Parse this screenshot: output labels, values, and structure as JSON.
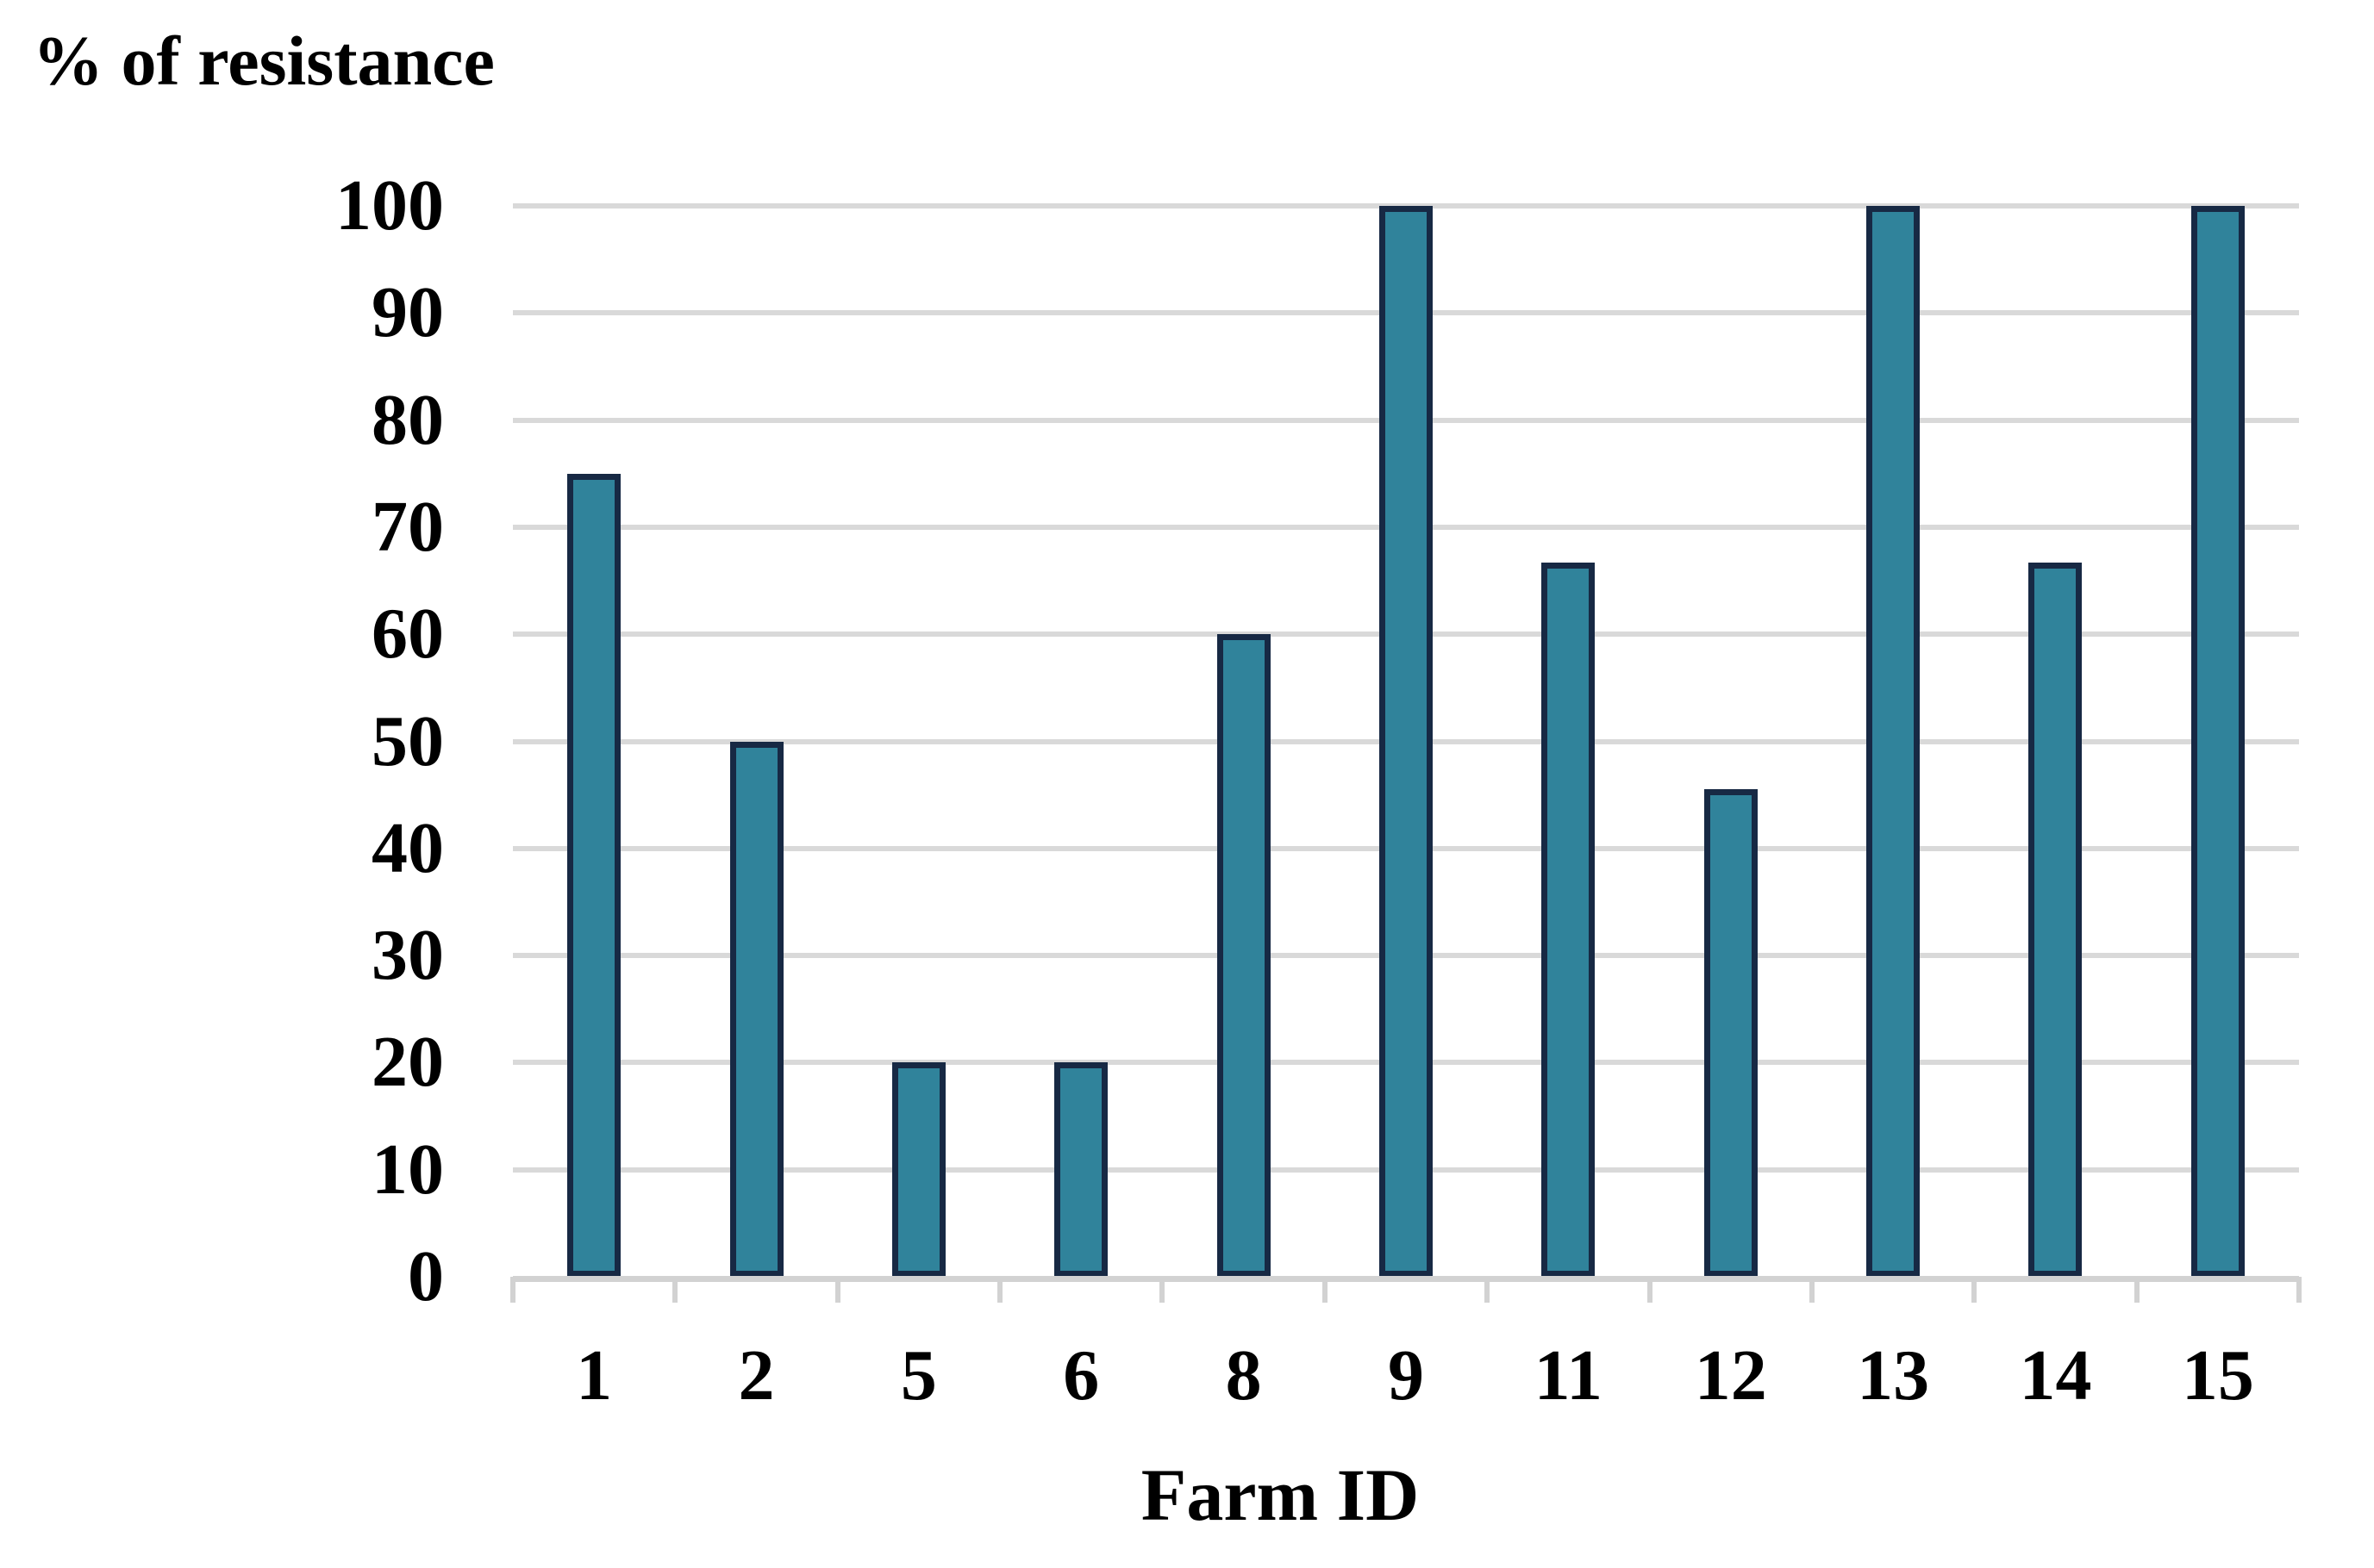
{
  "figure": {
    "background": "#ffffff"
  },
  "chart_data": {
    "type": "bar",
    "title": "% of resistance",
    "xlabel": "Farm ID",
    "ylabel": "% of resistance",
    "categories": [
      "1",
      "2",
      "5",
      "6",
      "8",
      "9",
      "11",
      "12",
      "13",
      "14",
      "15"
    ],
    "values": [
      75,
      50,
      20,
      20,
      60,
      100,
      66.7,
      45.5,
      100,
      66.7,
      100
    ],
    "ylim": [
      0,
      100
    ],
    "yticks": [
      0,
      10,
      20,
      30,
      40,
      50,
      60,
      70,
      80,
      90,
      100
    ],
    "grid": "horizontal",
    "legend": "none",
    "colors": {
      "bar_fill": "#30839B",
      "bar_border": "#172944",
      "gridline": "#D9D9D9",
      "axis_line": "#D2D2D2",
      "text": "#000000"
    }
  }
}
